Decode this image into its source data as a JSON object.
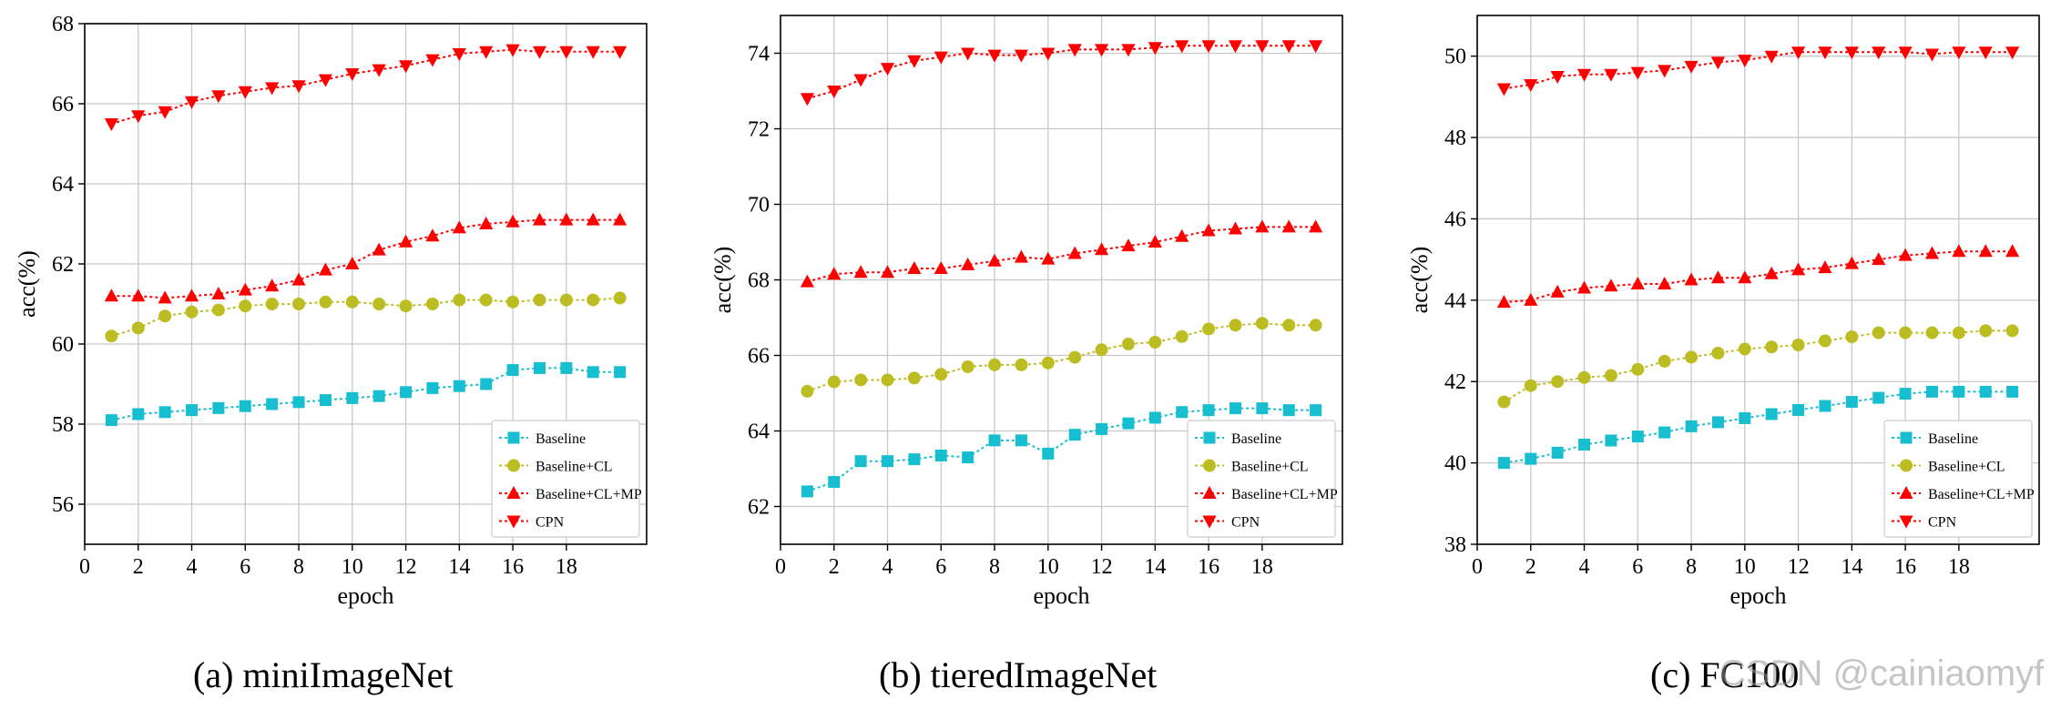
{
  "chart_data": [
    {
      "type": "line",
      "title": "",
      "caption": "(a) miniImageNet",
      "xlabel": "epoch",
      "ylabel": "acc(%)",
      "xlim": [
        0,
        21
      ],
      "ylim": [
        55,
        68
      ],
      "xticks": [
        0,
        2,
        4,
        6,
        8,
        10,
        12,
        14,
        16,
        18
      ],
      "yticks": [
        56,
        58,
        60,
        62,
        64,
        66,
        68
      ],
      "grid": true,
      "legend_position": "bottom-right",
      "x": [
        1,
        2,
        3,
        4,
        5,
        6,
        7,
        8,
        9,
        10,
        11,
        12,
        13,
        14,
        15,
        16,
        17,
        18,
        19,
        20
      ],
      "series": [
        {
          "name": "Baseline",
          "color": "#17becf",
          "marker": "square",
          "values": [
            58.1,
            58.25,
            58.3,
            58.35,
            58.4,
            58.45,
            58.5,
            58.55,
            58.6,
            58.65,
            58.7,
            58.8,
            58.9,
            58.95,
            59.0,
            59.35,
            59.4,
            59.4,
            59.3,
            59.3
          ]
        },
        {
          "name": "Baseline+CL",
          "color": "#bcbd22",
          "marker": "circle",
          "values": [
            60.2,
            60.4,
            60.7,
            60.8,
            60.85,
            60.95,
            61.0,
            61.0,
            61.05,
            61.05,
            61.0,
            60.95,
            61.0,
            61.1,
            61.1,
            61.05,
            61.1,
            61.1,
            61.1,
            61.15
          ]
        },
        {
          "name": "Baseline+CL+MP",
          "color": "#ff0000",
          "marker": "triangle-up",
          "values": [
            61.2,
            61.2,
            61.15,
            61.2,
            61.25,
            61.35,
            61.45,
            61.6,
            61.85,
            62.0,
            62.35,
            62.55,
            62.7,
            62.9,
            63.0,
            63.05,
            63.1,
            63.1,
            63.1,
            63.1
          ]
        },
        {
          "name": "CPN",
          "color": "#ff0000",
          "marker": "triangle-down",
          "values": [
            65.5,
            65.7,
            65.8,
            66.05,
            66.2,
            66.3,
            66.4,
            66.45,
            66.6,
            66.75,
            66.85,
            66.95,
            67.1,
            67.25,
            67.3,
            67.35,
            67.3,
            67.3,
            67.3,
            67.3
          ]
        }
      ]
    },
    {
      "type": "line",
      "title": "",
      "caption": "(b) tieredImageNet",
      "xlabel": "epoch",
      "ylabel": "acc(%)",
      "xlim": [
        0,
        21
      ],
      "ylim": [
        61,
        75
      ],
      "xticks": [
        0,
        2,
        4,
        6,
        8,
        10,
        12,
        14,
        16,
        18
      ],
      "yticks": [
        62,
        64,
        66,
        68,
        70,
        72,
        74
      ],
      "grid": true,
      "legend_position": "bottom-right",
      "x": [
        1,
        2,
        3,
        4,
        5,
        6,
        7,
        8,
        9,
        10,
        11,
        12,
        13,
        14,
        15,
        16,
        17,
        18,
        19,
        20
      ],
      "series": [
        {
          "name": "Baseline",
          "color": "#17becf",
          "marker": "square",
          "values": [
            62.4,
            62.65,
            63.2,
            63.2,
            63.25,
            63.35,
            63.3,
            63.75,
            63.75,
            63.4,
            63.9,
            64.05,
            64.2,
            64.35,
            64.5,
            64.55,
            64.6,
            64.6,
            64.55,
            64.55
          ]
        },
        {
          "name": "Baseline+CL",
          "color": "#bcbd22",
          "marker": "circle",
          "values": [
            65.05,
            65.3,
            65.35,
            65.35,
            65.4,
            65.5,
            65.7,
            65.75,
            65.75,
            65.8,
            65.95,
            66.15,
            66.3,
            66.35,
            66.5,
            66.7,
            66.8,
            66.85,
            66.8,
            66.8
          ]
        },
        {
          "name": "Baseline+CL+MP",
          "color": "#ff0000",
          "marker": "triangle-up",
          "values": [
            67.95,
            68.15,
            68.2,
            68.2,
            68.3,
            68.3,
            68.4,
            68.5,
            68.6,
            68.55,
            68.7,
            68.8,
            68.9,
            69.0,
            69.15,
            69.3,
            69.35,
            69.4,
            69.4,
            69.4
          ]
        },
        {
          "name": "CPN",
          "color": "#ff0000",
          "marker": "triangle-down",
          "values": [
            72.8,
            73.0,
            73.3,
            73.6,
            73.8,
            73.9,
            74.0,
            73.95,
            73.95,
            74.0,
            74.1,
            74.1,
            74.1,
            74.15,
            74.2,
            74.2,
            74.2,
            74.2,
            74.2,
            74.2
          ]
        }
      ]
    },
    {
      "type": "line",
      "title": "",
      "caption": "(c) FC100",
      "xlabel": "epoch",
      "ylabel": "acc(%)",
      "xlim": [
        0,
        21
      ],
      "ylim": [
        38,
        51
      ],
      "xticks": [
        0,
        2,
        4,
        6,
        8,
        10,
        12,
        14,
        16,
        18
      ],
      "yticks": [
        38,
        40,
        42,
        44,
        46,
        48,
        50
      ],
      "grid": true,
      "legend_position": "bottom-right",
      "x": [
        1,
        2,
        3,
        4,
        5,
        6,
        7,
        8,
        9,
        10,
        11,
        12,
        13,
        14,
        15,
        16,
        17,
        18,
        19,
        20
      ],
      "series": [
        {
          "name": "Baseline",
          "color": "#17becf",
          "marker": "square",
          "values": [
            40.0,
            40.1,
            40.25,
            40.45,
            40.55,
            40.65,
            40.75,
            40.9,
            41.0,
            41.1,
            41.2,
            41.3,
            41.4,
            41.5,
            41.6,
            41.7,
            41.75,
            41.75,
            41.75,
            41.75
          ]
        },
        {
          "name": "Baseline+CL",
          "color": "#bcbd22",
          "marker": "circle",
          "values": [
            41.5,
            41.9,
            42.0,
            42.1,
            42.15,
            42.3,
            42.5,
            42.6,
            42.7,
            42.8,
            42.85,
            42.9,
            43.0,
            43.1,
            43.2,
            43.2,
            43.2,
            43.2,
            43.25,
            43.25
          ]
        },
        {
          "name": "Baseline+CL+MP",
          "color": "#ff0000",
          "marker": "triangle-up",
          "values": [
            43.95,
            44.0,
            44.2,
            44.3,
            44.35,
            44.4,
            44.4,
            44.5,
            44.55,
            44.55,
            44.65,
            44.75,
            44.8,
            44.9,
            45.0,
            45.1,
            45.15,
            45.2,
            45.2,
            45.2
          ]
        },
        {
          "name": "CPN",
          "color": "#ff0000",
          "marker": "triangle-down",
          "values": [
            49.2,
            49.3,
            49.5,
            49.55,
            49.55,
            49.6,
            49.65,
            49.75,
            49.85,
            49.9,
            50.0,
            50.1,
            50.1,
            50.1,
            50.1,
            50.1,
            50.05,
            50.1,
            50.1,
            50.1
          ]
        }
      ]
    }
  ],
  "watermark": "CSDN @cainiaomyf"
}
